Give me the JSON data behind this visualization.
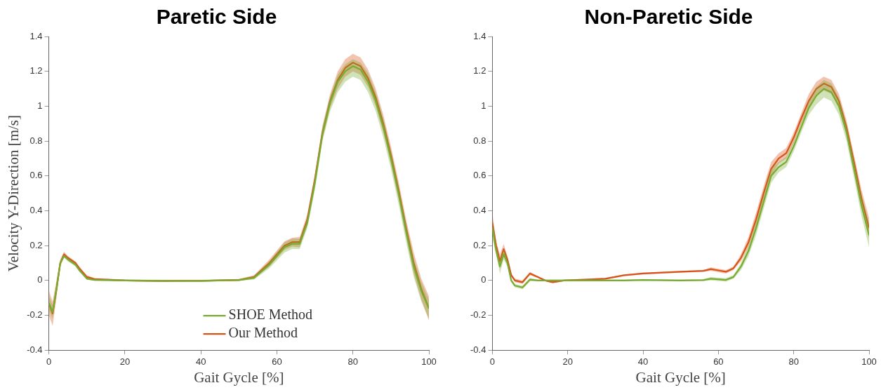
{
  "chart_data": [
    {
      "type": "line",
      "title": "Paretic Side",
      "xlabel": "Gait Gycle [%]",
      "ylabel": "Velocity Y-Direction [m/s]",
      "xlim": [
        0,
        100
      ],
      "xticks": [
        0,
        20,
        40,
        60,
        80,
        100
      ],
      "ylim": [
        -0.4,
        1.4
      ],
      "yticks": [
        -0.4,
        -0.2,
        0,
        0.2,
        0.4,
        0.6,
        0.8,
        1,
        1.2,
        1.4
      ],
      "grid": false,
      "legend": "bottom",
      "marker": "none",
      "line_style": "solid",
      "x": [
        0,
        1,
        2,
        3,
        4,
        5,
        7,
        8,
        10,
        12,
        20,
        30,
        40,
        50,
        54,
        58,
        62,
        64,
        66,
        68,
        70,
        72,
        74,
        76,
        78,
        80,
        82,
        84,
        86,
        88,
        90,
        92,
        94,
        96,
        98,
        100
      ],
      "series": [
        {
          "name": "SHOE Method",
          "color": "#77ac30",
          "values": [
            -0.13,
            -0.18,
            -0.05,
            0.1,
            0.14,
            0.12,
            0.09,
            0.06,
            0.01,
            0.003,
            0,
            -0.002,
            -0.002,
            0.002,
            0.015,
            0.09,
            0.19,
            0.21,
            0.21,
            0.33,
            0.56,
            0.84,
            1.02,
            1.14,
            1.2,
            1.23,
            1.21,
            1.14,
            1.03,
            0.88,
            0.7,
            0.5,
            0.28,
            0.08,
            -0.06,
            -0.16
          ],
          "lower": [
            -0.17,
            -0.22,
            -0.08,
            0.085,
            0.13,
            0.11,
            0.08,
            0.05,
            0.005,
            -0.002,
            -0.005,
            -0.007,
            -0.007,
            -0.003,
            0.005,
            0.07,
            0.16,
            0.18,
            0.18,
            0.3,
            0.52,
            0.8,
            0.97,
            1.08,
            1.14,
            1.17,
            1.15,
            1.08,
            0.97,
            0.82,
            0.64,
            0.44,
            0.22,
            0.02,
            -0.12,
            -0.22
          ],
          "upper": [
            -0.09,
            -0.14,
            -0.02,
            0.115,
            0.15,
            0.13,
            0.1,
            0.07,
            0.015,
            0.008,
            0.005,
            0.003,
            0.003,
            0.007,
            0.025,
            0.11,
            0.22,
            0.24,
            0.24,
            0.36,
            0.6,
            0.88,
            1.06,
            1.18,
            1.24,
            1.27,
            1.25,
            1.19,
            1.08,
            0.93,
            0.75,
            0.55,
            0.33,
            0.13,
            -0.01,
            -0.11
          ]
        },
        {
          "name": "Our Method",
          "color": "#d95319",
          "values": [
            -0.13,
            -0.19,
            -0.05,
            0.1,
            0.15,
            0.13,
            0.1,
            0.07,
            0.02,
            0.008,
            0,
            -0.003,
            -0.002,
            0.003,
            0.02,
            0.1,
            0.2,
            0.22,
            0.22,
            0.35,
            0.58,
            0.85,
            1.03,
            1.15,
            1.22,
            1.25,
            1.23,
            1.16,
            1.05,
            0.9,
            0.72,
            0.52,
            0.3,
            0.1,
            -0.05,
            -0.16
          ],
          "lower": [
            -0.2,
            -0.26,
            -0.1,
            0.08,
            0.135,
            0.12,
            0.09,
            0.06,
            0.01,
            0.003,
            -0.005,
            -0.008,
            -0.007,
            -0.002,
            0.01,
            0.08,
            0.175,
            0.195,
            0.19,
            0.32,
            0.55,
            0.81,
            0.99,
            1.1,
            1.17,
            1.2,
            1.18,
            1.11,
            1,
            0.85,
            0.67,
            0.47,
            0.25,
            0.04,
            -0.11,
            -0.23
          ],
          "upper": [
            -0.06,
            -0.12,
            0,
            0.12,
            0.165,
            0.14,
            0.11,
            0.08,
            0.03,
            0.013,
            0.005,
            0.002,
            0.003,
            0.008,
            0.03,
            0.12,
            0.225,
            0.245,
            0.25,
            0.38,
            0.61,
            0.89,
            1.07,
            1.2,
            1.27,
            1.3,
            1.28,
            1.21,
            1.1,
            0.95,
            0.77,
            0.57,
            0.35,
            0.16,
            0.01,
            -0.09
          ]
        }
      ]
    },
    {
      "type": "line",
      "title": "Non-Paretic Side",
      "xlabel": "Gait Gycle [%]",
      "xlim": [
        0,
        100
      ],
      "xticks": [
        0,
        20,
        40,
        60,
        80,
        100
      ],
      "ylim": [
        -0.4,
        1.4
      ],
      "yticks": [
        -0.4,
        -0.2,
        0,
        0.2,
        0.4,
        0.6,
        0.8,
        1,
        1.2,
        1.4
      ],
      "grid": false,
      "marker": "none",
      "line_style": "solid",
      "x": [
        0,
        1,
        2,
        3,
        4,
        5,
        6,
        8,
        10,
        12,
        14,
        16,
        19,
        25,
        30,
        35,
        40,
        50,
        56,
        58,
        62,
        64,
        66,
        68,
        70,
        72,
        74,
        76,
        78,
        80,
        82,
        84,
        86,
        88,
        90,
        92,
        94,
        96,
        98,
        100
      ],
      "series": [
        {
          "color": "#77ac30",
          "values": [
            0.3,
            0.17,
            0.08,
            0.15,
            0.1,
            0,
            -0.03,
            -0.04,
            0.005,
            0,
            0,
            0,
            0,
            0,
            0,
            0,
            0.003,
            0,
            0.002,
            0.01,
            0.003,
            0.02,
            0.08,
            0.17,
            0.3,
            0.45,
            0.6,
            0.65,
            0.68,
            0.77,
            0.88,
            0.99,
            1.06,
            1.1,
            1.08,
            1,
            0.85,
            0.64,
            0.43,
            0.26
          ],
          "lower": [
            0.24,
            0.15,
            0.04,
            0.12,
            0.08,
            -0.01,
            -0.04,
            -0.05,
            -0.005,
            -0.005,
            -0.005,
            -0.005,
            -0.005,
            -0.005,
            -0.005,
            -0.005,
            -0.002,
            -0.005,
            -0.003,
            0,
            -0.007,
            0.01,
            0.06,
            0.14,
            0.26,
            0.41,
            0.56,
            0.62,
            0.65,
            0.74,
            0.85,
            0.95,
            1.01,
            1.05,
            1.03,
            0.95,
            0.8,
            0.59,
            0.37,
            0.19
          ],
          "upper": [
            0.36,
            0.19,
            0.12,
            0.18,
            0.12,
            0.01,
            -0.02,
            -0.03,
            0.015,
            0.005,
            0.005,
            0.005,
            0.005,
            0.005,
            0.005,
            0.005,
            0.008,
            0.005,
            0.007,
            0.02,
            0.013,
            0.03,
            0.1,
            0.2,
            0.34,
            0.49,
            0.64,
            0.68,
            0.71,
            0.8,
            0.91,
            1.03,
            1.11,
            1.15,
            1.13,
            1.05,
            0.9,
            0.69,
            0.49,
            0.33
          ]
        },
        {
          "color": "#d95319",
          "values": [
            0.33,
            0.2,
            0.11,
            0.18,
            0.12,
            0.03,
            0,
            -0.01,
            0.04,
            0.02,
            0,
            -0.01,
            0,
            0.005,
            0.01,
            0.03,
            0.04,
            0.05,
            0.055,
            0.065,
            0.05,
            0.07,
            0.13,
            0.22,
            0.35,
            0.5,
            0.64,
            0.7,
            0.73,
            0.82,
            0.93,
            1.03,
            1.1,
            1.13,
            1.11,
            1.03,
            0.88,
            0.68,
            0.47,
            0.3
          ],
          "lower": [
            0.27,
            0.18,
            0.07,
            0.15,
            0.1,
            0.02,
            -0.01,
            -0.02,
            0.03,
            0.015,
            -0.005,
            -0.015,
            -0.005,
            0,
            0.005,
            0.025,
            0.035,
            0.045,
            0.05,
            0.055,
            0.04,
            0.06,
            0.11,
            0.19,
            0.31,
            0.46,
            0.6,
            0.67,
            0.7,
            0.79,
            0.9,
            0.99,
            1.06,
            1.09,
            1.07,
            0.99,
            0.84,
            0.64,
            0.42,
            0.24
          ],
          "upper": [
            0.39,
            0.22,
            0.15,
            0.21,
            0.14,
            0.04,
            0.01,
            0,
            0.05,
            0.025,
            0.005,
            -0.005,
            0.005,
            0.01,
            0.015,
            0.035,
            0.045,
            0.055,
            0.06,
            0.075,
            0.06,
            0.08,
            0.15,
            0.25,
            0.39,
            0.54,
            0.68,
            0.73,
            0.76,
            0.85,
            0.96,
            1.07,
            1.14,
            1.17,
            1.15,
            1.07,
            0.92,
            0.72,
            0.52,
            0.36
          ]
        }
      ]
    }
  ]
}
